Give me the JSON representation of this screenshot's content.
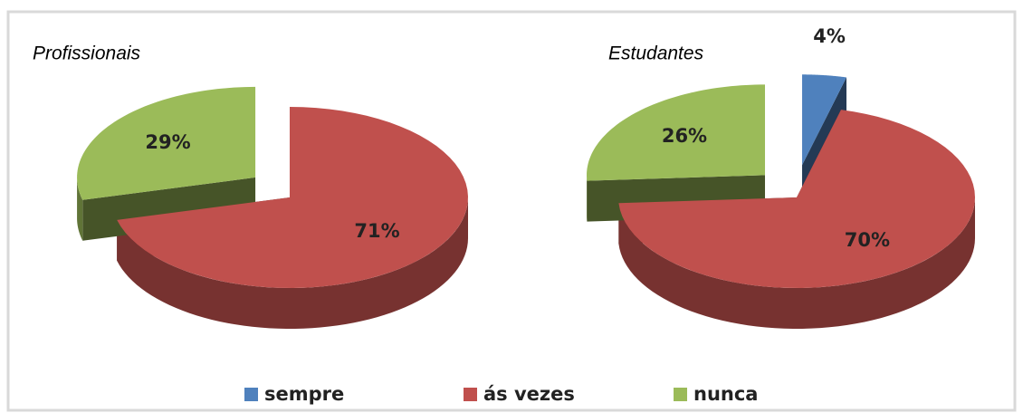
{
  "chart_data": [
    {
      "type": "pie3d",
      "title": "Profissionais",
      "categories": [
        "ás vezes",
        "nunca"
      ],
      "values": [
        71,
        29
      ],
      "value_labels": [
        "71%",
        "29%"
      ],
      "colors": [
        "#c0504d",
        "#9bbb59"
      ]
    },
    {
      "type": "pie3d",
      "title": "Estudantes",
      "categories": [
        "sempre",
        "ás vezes",
        "nunca"
      ],
      "values": [
        4,
        70,
        26
      ],
      "value_labels": [
        "4%",
        "70%",
        "26%"
      ],
      "colors": [
        "#4f81bd",
        "#c0504d",
        "#9bbb59"
      ]
    }
  ]
}
